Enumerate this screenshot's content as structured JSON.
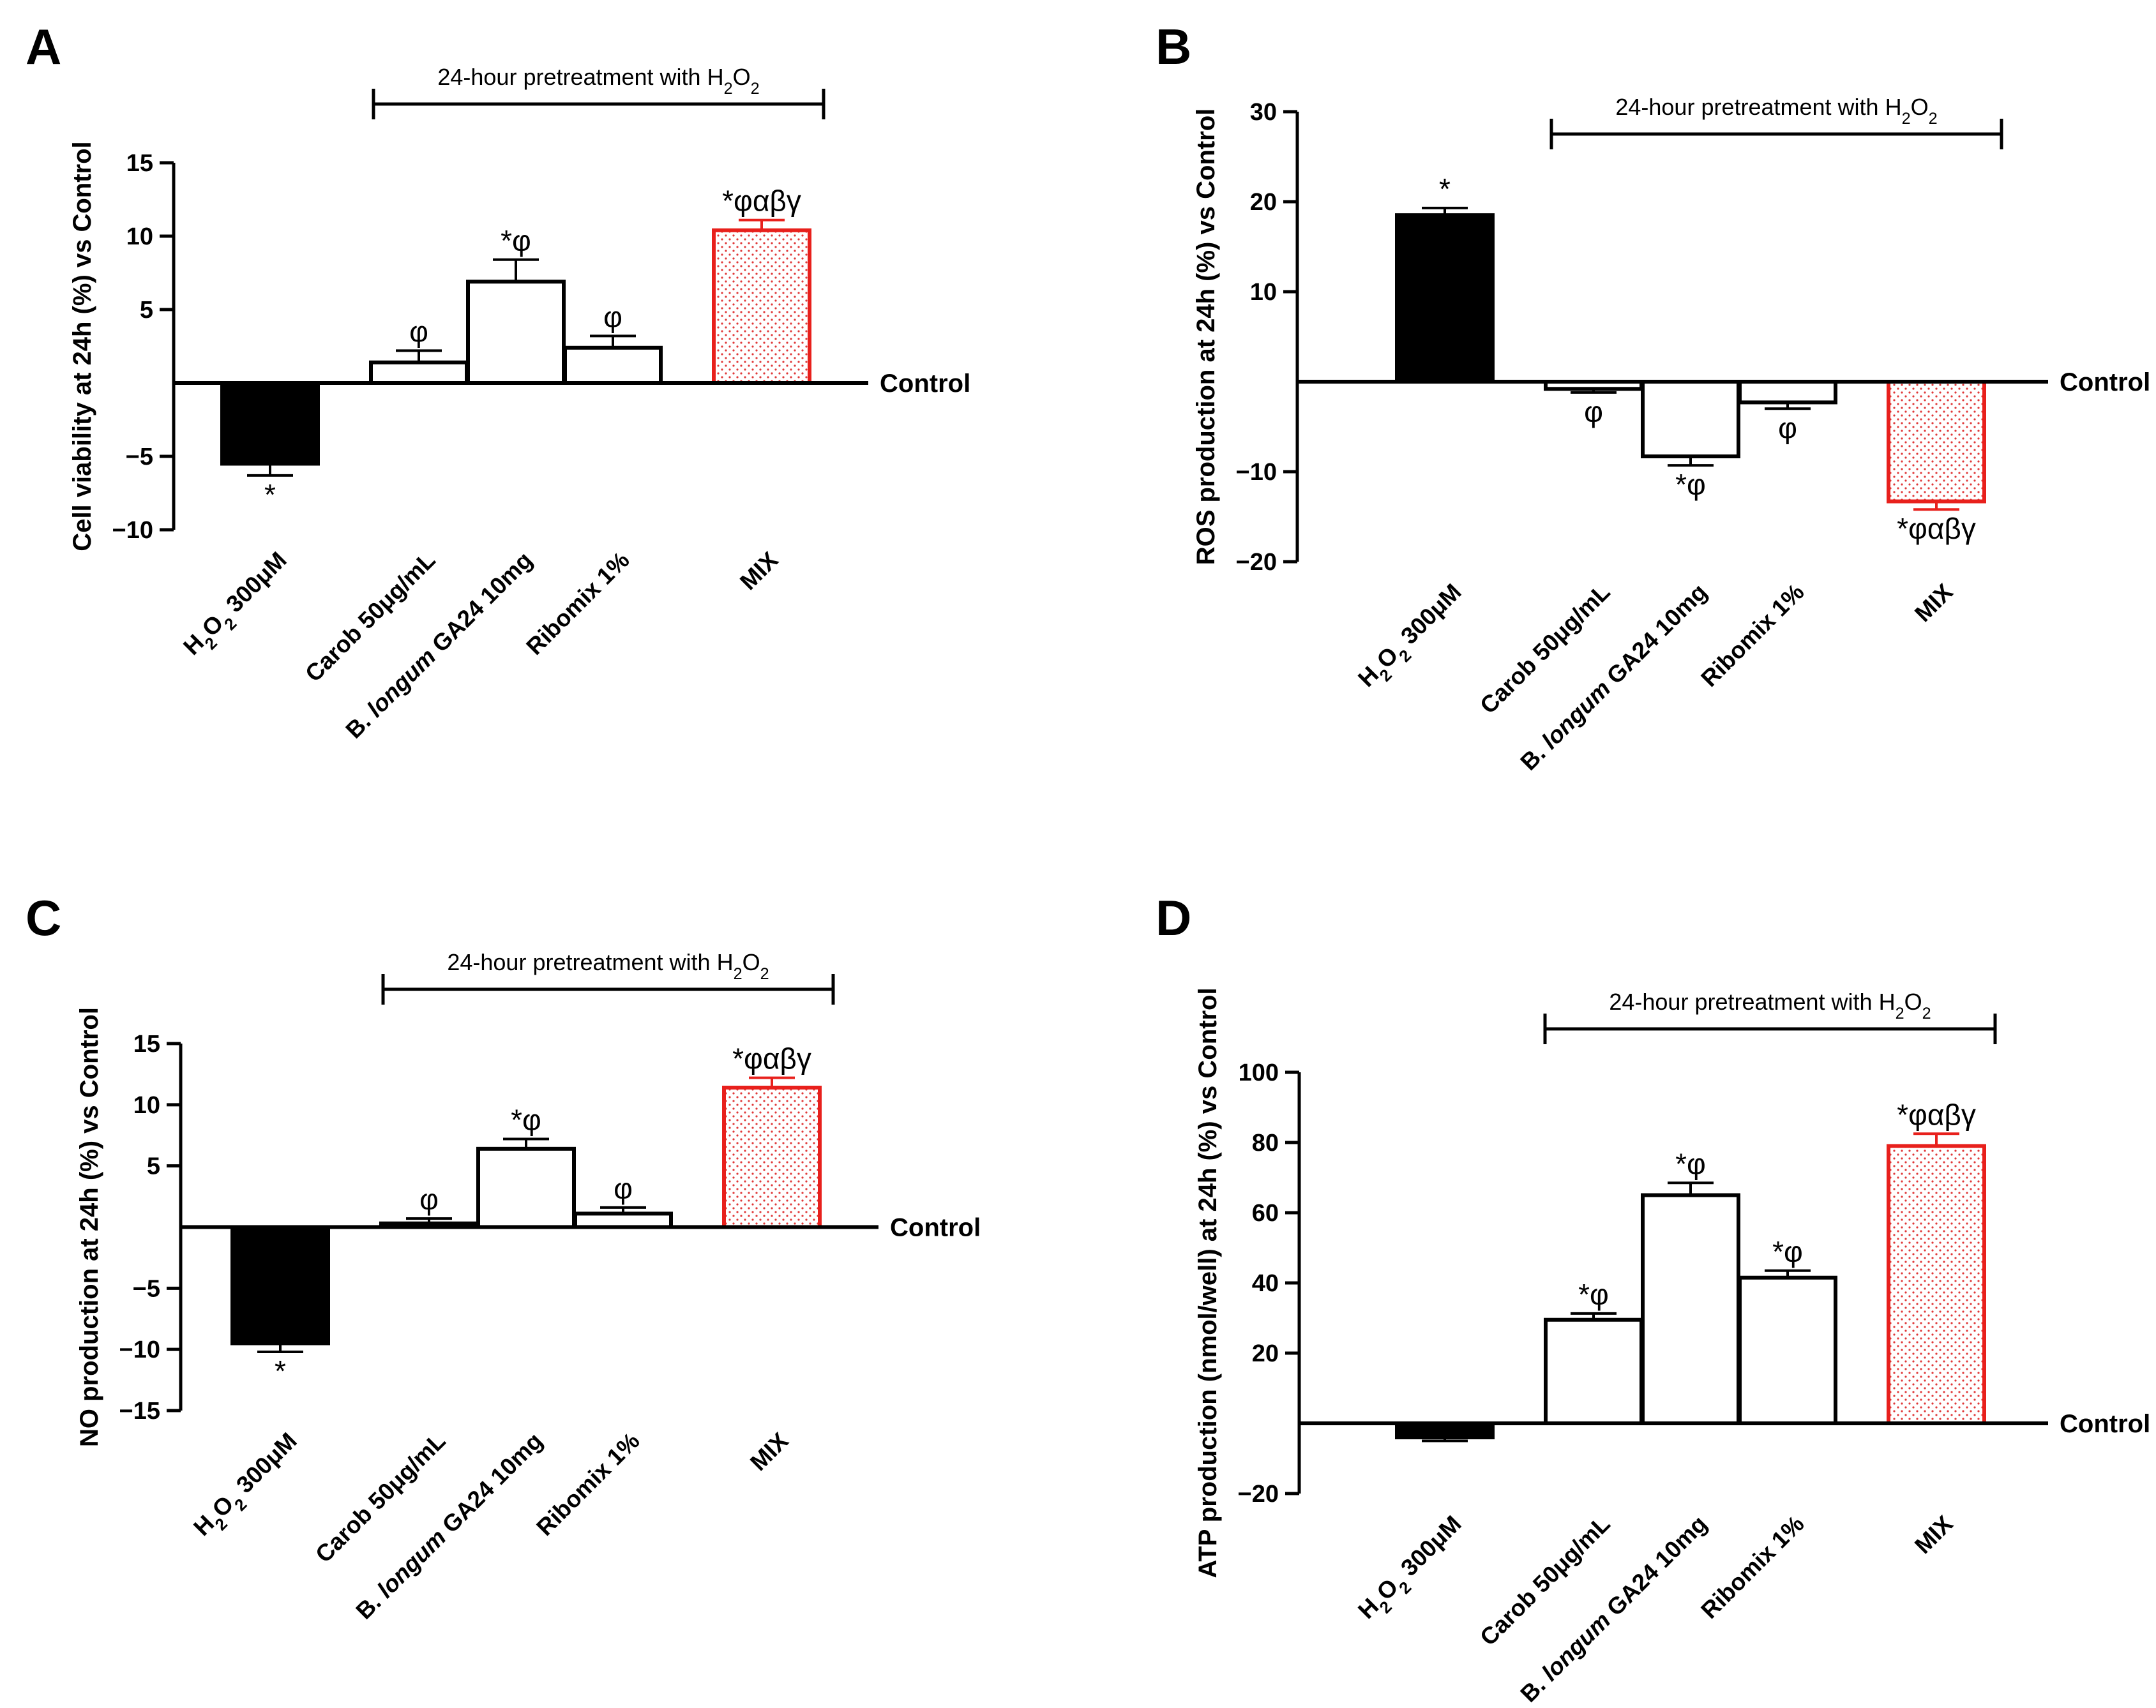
{
  "figure": {
    "bracket_text": "24-hour pretreatment with H2O2"
  },
  "chart_data": [
    {
      "panel": "A",
      "type": "bar",
      "ylabel": "Cell viability at 24h (%) vs Control",
      "reference_label": "Control",
      "categories": [
        "H2O2 300μM",
        "Carob 50μg/mL",
        "B. longum GA24 10mg",
        "Ribomix 1%",
        "MIX"
      ],
      "values": [
        -5.5,
        1.4,
        6.9,
        2.4,
        10.4
      ],
      "errors": [
        0.8,
        0.8,
        1.5,
        0.8,
        0.7
      ],
      "significance": [
        "*",
        "φ",
        "*φ",
        "φ",
        "*φαβγ"
      ],
      "ylim": [
        -10,
        15
      ],
      "yticks": [
        -10,
        -5,
        5,
        10,
        15
      ],
      "bracket": "24-hour pretreatment with H2O2"
    },
    {
      "panel": "B",
      "type": "bar",
      "ylabel": "ROS production at 24h (%) vs Control",
      "reference_label": "Control",
      "categories": [
        "H2O2 300μM",
        "Carob 50μg/mL",
        "B. longum GA24 10mg",
        "Ribomix 1%",
        "MIX"
      ],
      "values": [
        18.5,
        -0.8,
        -8.3,
        -2.3,
        -13.3
      ],
      "errors": [
        0.8,
        0.4,
        1.0,
        0.7,
        0.9
      ],
      "significance": [
        "*",
        "φ",
        "*φ",
        "φ",
        "*φαβγ"
      ],
      "ylim": [
        -20,
        30
      ],
      "yticks": [
        -20,
        -10,
        10,
        20,
        30
      ],
      "bracket": "24-hour pretreatment with H2O2"
    },
    {
      "panel": "C",
      "type": "bar",
      "ylabel": "NO production at 24h (%) vs Control",
      "reference_label": "Control",
      "categories": [
        "H2O2 300μM",
        "Carob 50μg/mL",
        "B. longum GA24 10mg",
        "Ribomix 1%",
        "MIX"
      ],
      "values": [
        -9.5,
        0.3,
        6.4,
        1.1,
        11.4
      ],
      "errors": [
        0.7,
        0.4,
        0.8,
        0.5,
        0.8
      ],
      "significance": [
        "*",
        "φ",
        "*φ",
        "φ",
        "*φαβγ"
      ],
      "ylim": [
        -15,
        15
      ],
      "yticks": [
        -15,
        -10,
        -5,
        5,
        10,
        15
      ],
      "bracket": "24-hour pretreatment with H2O2"
    },
    {
      "panel": "D",
      "type": "bar",
      "ylabel": "ATP production (nmol/well) at 24h (%) vs Control",
      "reference_label": "Control",
      "categories": [
        "H2O2 300μM",
        "Carob 50μg/mL",
        "B. longum GA24 10mg",
        "Ribomix 1%",
        "MIX"
      ],
      "values": [
        -4,
        29.5,
        65,
        41.5,
        79
      ],
      "errors": [
        1,
        1.8,
        3.5,
        2,
        3.5
      ],
      "significance": [
        "",
        "*φ",
        "*φ",
        "*φ",
        "*φαβγ"
      ],
      "ylim": [
        -20,
        100
      ],
      "yticks": [
        -20,
        20,
        40,
        60,
        80,
        100
      ],
      "bracket": "24-hour pretreatment with H2O2"
    }
  ]
}
